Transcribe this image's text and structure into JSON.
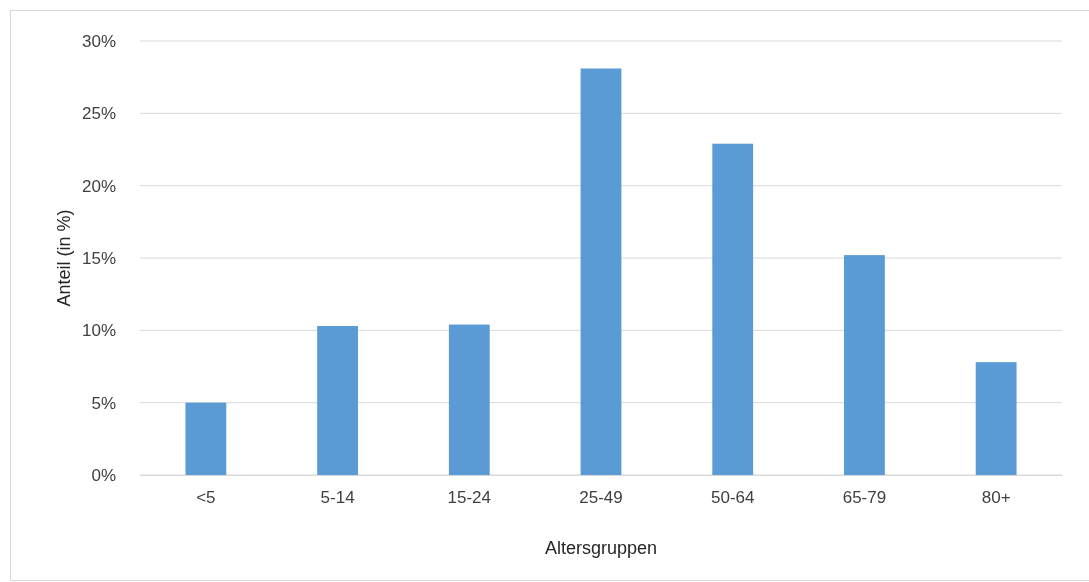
{
  "chart_data": {
    "type": "bar",
    "xlabel": "Altersgruppen",
    "ylabel": "Anteil (in %)",
    "categories": [
      "<5",
      "5-14",
      "15-24",
      "25-49",
      "50-64",
      "65-79",
      "80+"
    ],
    "values": [
      5.0,
      10.3,
      10.4,
      28.1,
      22.9,
      15.2,
      7.8
    ],
    "color": "#5b9bd5",
    "ylim": [
      0,
      30
    ],
    "yticks": [
      {
        "value": 0,
        "label": "0%"
      },
      {
        "value": 5,
        "label": "5%"
      },
      {
        "value": 10,
        "label": "10%"
      },
      {
        "value": 15,
        "label": "15%"
      },
      {
        "value": 20,
        "label": "20%"
      },
      {
        "value": 25,
        "label": "25%"
      },
      {
        "value": 30,
        "label": "30%"
      }
    ],
    "grid": "y"
  }
}
